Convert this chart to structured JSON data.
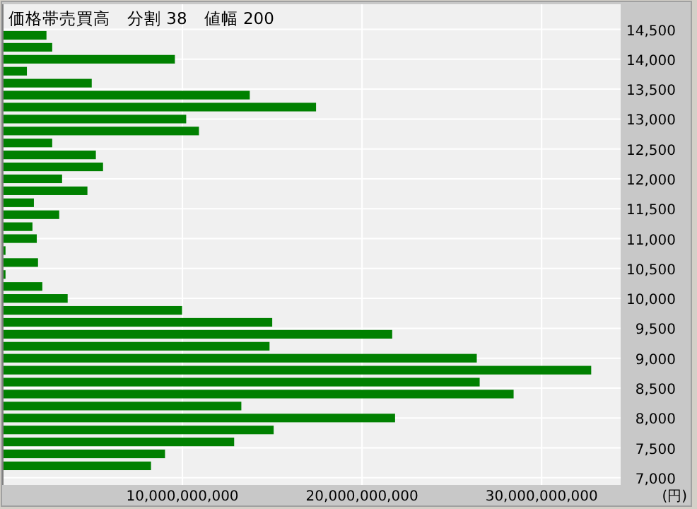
{
  "chart_data": {
    "type": "bar",
    "orientation": "horizontal",
    "title": "価格帯売買高　分割 38　値幅 200",
    "xlabel": "(円)",
    "x": [
      14400,
      14200,
      14000,
      13800,
      13600,
      13400,
      13200,
      13000,
      12800,
      12600,
      12400,
      12200,
      12000,
      11800,
      11600,
      11400,
      11200,
      11000,
      10800,
      10600,
      10400,
      10200,
      10000,
      9800,
      9600,
      9400,
      9200,
      9000,
      8800,
      8600,
      8400,
      8200,
      8000,
      7800,
      7600,
      7400,
      7200
    ],
    "values": [
      2430000000,
      2750000000,
      9580000000,
      1340000000,
      4950000000,
      13750000000,
      17440000000,
      10210000000,
      10920000000,
      2750000000,
      5180000000,
      5580000000,
      3300000000,
      4710000000,
      1730000000,
      3140000000,
      1650000000,
      1890000000,
      150000000,
      1960000000,
      150000000,
      2200000000,
      3610000000,
      9980000000,
      15000000000,
      21680000000,
      14850000000,
      26390000000,
      32760000000,
      26550000000,
      28440000000,
      13280000000,
      21840000000,
      15080000000,
      12880000000,
      9030000000,
      8250000000
    ],
    "color": "#008000",
    "xlim": [
      0,
      34400000000
    ],
    "xticks": [
      {
        "value": 10000000000,
        "label": "10,000,000,000"
      },
      {
        "value": 20000000000,
        "label": "20,000,000,000"
      },
      {
        "value": 30000000000,
        "label": "30,000,000,000"
      }
    ],
    "ylim": [
      6880,
      14920
    ],
    "yticks": [
      {
        "value": 7000,
        "label": "7,000"
      },
      {
        "value": 7500,
        "label": "7,500"
      },
      {
        "value": 8000,
        "label": "8,000"
      },
      {
        "value": 8500,
        "label": "8,500"
      },
      {
        "value": 9000,
        "label": "9,000"
      },
      {
        "value": 9500,
        "label": "9,500"
      },
      {
        "value": 10000,
        "label": "10,000"
      },
      {
        "value": 10500,
        "label": "10,500"
      },
      {
        "value": 11000,
        "label": "11,000"
      },
      {
        "value": 11500,
        "label": "11,500"
      },
      {
        "value": 12000,
        "label": "12,000"
      },
      {
        "value": 12500,
        "label": "12,500"
      },
      {
        "value": 13000,
        "label": "13,000"
      },
      {
        "value": 13500,
        "label": "13,500"
      },
      {
        "value": 14000,
        "label": "14,000"
      },
      {
        "value": 14500,
        "label": "14,500"
      }
    ],
    "grid": true
  }
}
